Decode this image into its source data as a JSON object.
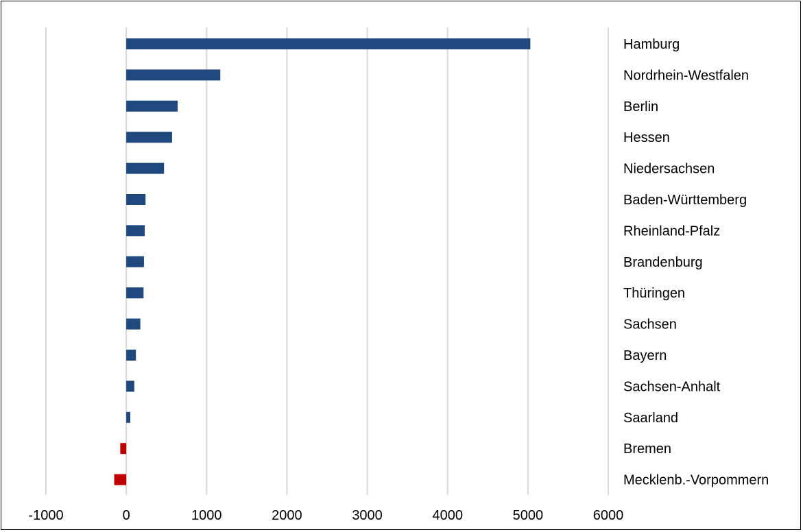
{
  "chart_data": {
    "type": "bar",
    "orientation": "horizontal",
    "categories": [
      "Hamburg",
      "Nordrhein-Westfalen",
      "Berlin",
      "Hessen",
      "Niedersachsen",
      "Baden-Württemberg",
      "Rheinland-Pfalz",
      "Brandenburg",
      "Thüringen",
      "Sachsen",
      "Bayern",
      "Sachsen-Anhalt",
      "Saarland",
      "Bremen",
      "Mecklenb.-Vorpommern"
    ],
    "values": [
      5030,
      1170,
      640,
      570,
      470,
      240,
      230,
      220,
      215,
      175,
      120,
      100,
      50,
      -75,
      -150
    ],
    "xlim": [
      -1000,
      6000
    ],
    "xticks": [
      "-1000",
      "0",
      "1000",
      "2000",
      "3000",
      "4000",
      "5000",
      "6000"
    ],
    "grid": "vertical",
    "legend": "none",
    "title": "",
    "xlabel": "",
    "ylabel": "",
    "colors": {
      "positive": "#1f497d",
      "negative": "#c00000",
      "grid": "#d9d9d9"
    }
  }
}
